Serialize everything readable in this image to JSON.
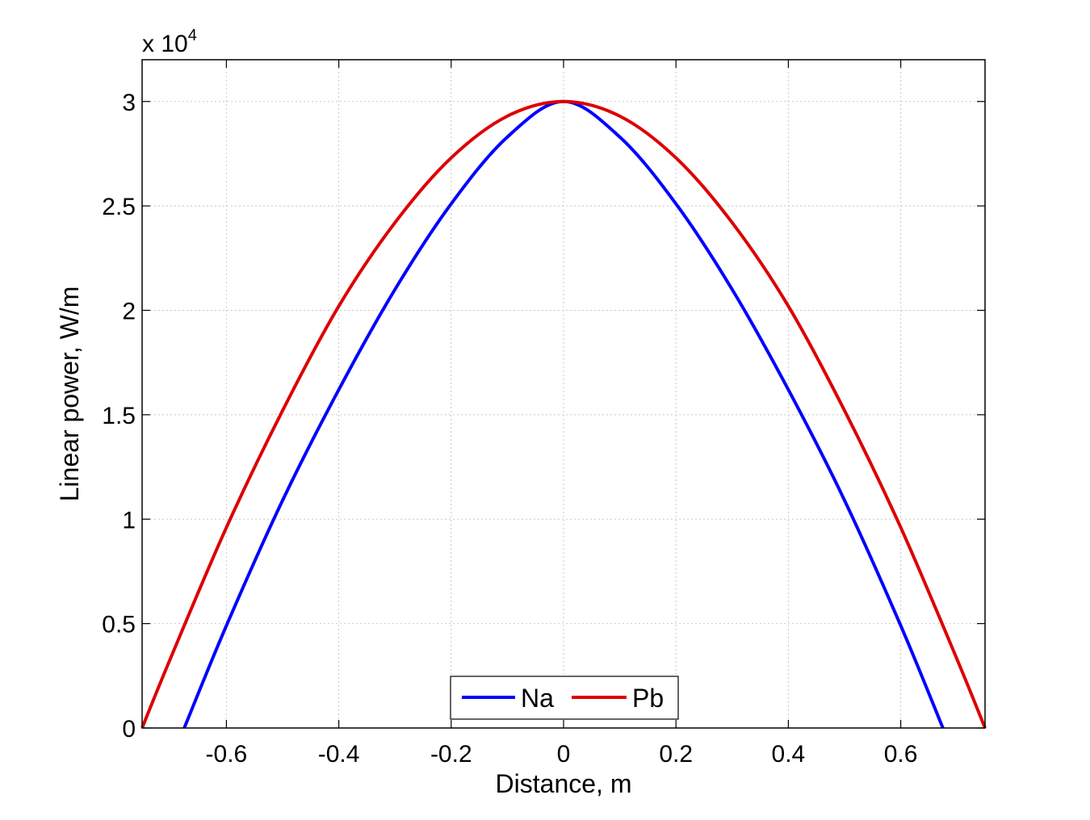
{
  "chart_data": {
    "type": "line",
    "title": "",
    "xlabel": "Distance, m",
    "ylabel": "Linear power, W/m",
    "y_exponent_base": "x 10",
    "y_exponent_power": "4",
    "xlim": [
      -0.75,
      0.75
    ],
    "ylim": [
      0,
      32000
    ],
    "x_ticks": [
      -0.6,
      -0.4,
      -0.2,
      0,
      0.2,
      0.4,
      0.6
    ],
    "x_tick_labels": [
      "-0.6",
      "-0.4",
      "-0.2",
      "0",
      "0.2",
      "0.4",
      "0.6"
    ],
    "y_ticks": [
      0,
      5000,
      10000,
      15000,
      20000,
      25000,
      30000
    ],
    "y_tick_labels": [
      "0",
      "0.5",
      "1",
      "1.5",
      "2",
      "2.5",
      "3"
    ],
    "grid": true,
    "legend_position": "bottom-center",
    "series": [
      {
        "name": "Na",
        "color": "#0000ff",
        "x": [
          -0.675,
          -0.6,
          -0.5,
          -0.4,
          -0.3,
          -0.2,
          -0.1,
          0,
          0.1,
          0.2,
          0.3,
          0.4,
          0.5,
          0.6,
          0.675
        ],
        "y": [
          0,
          4900,
          10900,
          16200,
          21000,
          25100,
          28300,
          30000,
          28300,
          25100,
          21000,
          16200,
          10900,
          4900,
          0
        ]
      },
      {
        "name": "Pb",
        "color": "#dd0000",
        "x": [
          -0.75,
          -0.7,
          -0.6,
          -0.5,
          -0.4,
          -0.3,
          -0.2,
          -0.1,
          0,
          0.1,
          0.2,
          0.3,
          0.4,
          0.5,
          0.6,
          0.7,
          0.75
        ],
        "y": [
          0,
          3300,
          9600,
          15200,
          20200,
          24200,
          27300,
          29300,
          30000,
          29300,
          27300,
          24200,
          20200,
          15200,
          9600,
          3300,
          0
        ]
      }
    ]
  }
}
